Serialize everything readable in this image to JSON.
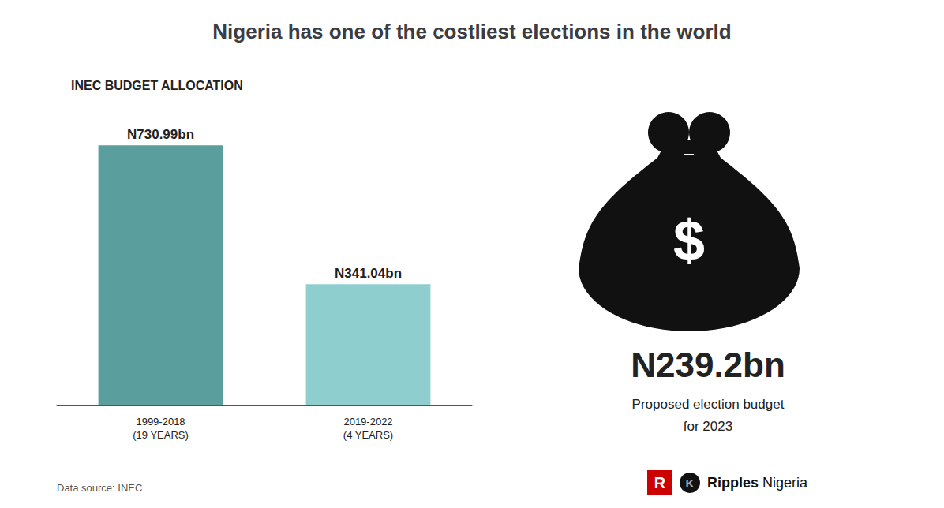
{
  "chart_data": {
    "type": "bar",
    "title": "Nigeria has one of the costliest elections in the world",
    "subtitle": "INEC BUDGET ALLOCATION",
    "categories": [
      "1999-2018\n(19 YEARS)",
      "2019-2022\n(4 YEARS)"
    ],
    "values": [
      730.99,
      341.04
    ],
    "value_labels": [
      "N730.99bn",
      "N341.04bn"
    ],
    "data_labels": true,
    "colors": [
      "#5a9e9e",
      "#8ecece"
    ],
    "ylim": [
      0,
      840
    ],
    "grid": false,
    "tick_labels": "x",
    "annotations": [
      "$",
      "N239.2bn",
      "Proposed election budget",
      "for 2023",
      "Data source: INEC",
      "R",
      "K",
      "Ripples",
      "Nigeria"
    ]
  }
}
